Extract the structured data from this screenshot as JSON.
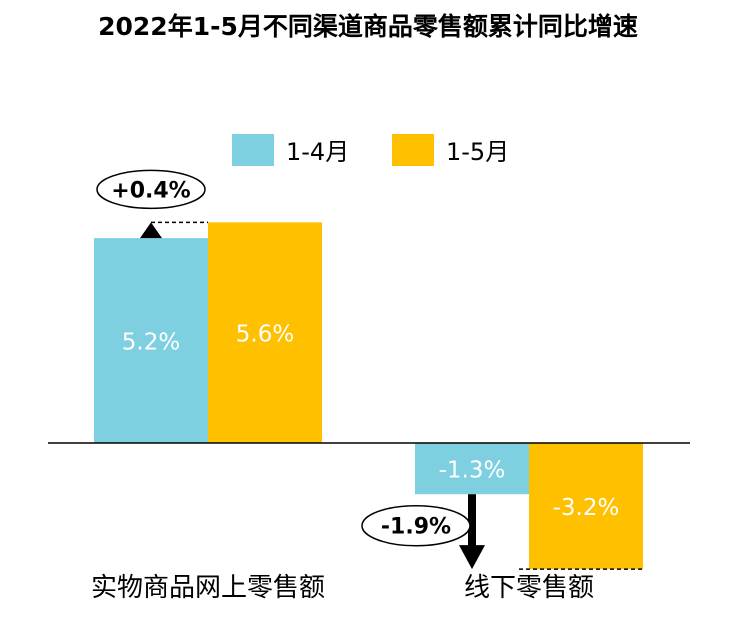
{
  "chart_data": {
    "type": "bar",
    "title": "2022年1-5月不同渠道商品零售额累计同比增速",
    "categories": [
      "实物商品网上零售额",
      "线下零售额"
    ],
    "series": [
      {
        "name": "1-4月",
        "values": [
          5.2,
          -1.3
        ],
        "labels": [
          "5.2%",
          "-1.3%"
        ],
        "color": "#7ecfe0"
      },
      {
        "name": "1-5月",
        "values": [
          5.6,
          -3.2
        ],
        "labels": [
          "5.6%",
          "-3.2%"
        ],
        "color": "#ffc000"
      }
    ],
    "annotations": [
      {
        "category": "实物商品网上零售额",
        "text": "+0.4%",
        "direction": "up"
      },
      {
        "category": "线下零售额",
        "text": "-1.9%",
        "direction": "down"
      }
    ],
    "legend_position": "top-center",
    "grid": false,
    "ylim": [
      -3.5,
      7
    ]
  }
}
